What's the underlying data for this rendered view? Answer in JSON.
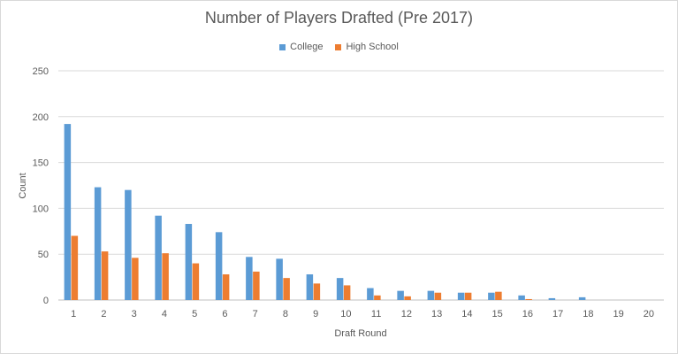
{
  "chart_data": {
    "type": "bar",
    "title": "Number of Players Drafted (Pre 2017)",
    "xlabel": "Draft Round",
    "ylabel": "Count",
    "ylim": [
      0,
      250
    ],
    "yticks": [
      0,
      50,
      100,
      150,
      200,
      250
    ],
    "categories": [
      "1",
      "2",
      "3",
      "4",
      "5",
      "6",
      "7",
      "8",
      "9",
      "10",
      "11",
      "12",
      "13",
      "14",
      "15",
      "16",
      "17",
      "18",
      "19",
      "20"
    ],
    "series": [
      {
        "name": "College",
        "color": "#5b9bd5",
        "values": [
          192,
          123,
          120,
          92,
          83,
          74,
          47,
          45,
          28,
          24,
          13,
          10,
          10,
          8,
          8,
          5,
          2,
          3,
          0,
          0
        ]
      },
      {
        "name": "High School",
        "color": "#ed7d31",
        "values": [
          70,
          53,
          46,
          51,
          40,
          28,
          31,
          24,
          18,
          16,
          5,
          4,
          8,
          8,
          9,
          1,
          0,
          0,
          0,
          0
        ]
      }
    ],
    "grid": true,
    "legend_position": "top"
  }
}
